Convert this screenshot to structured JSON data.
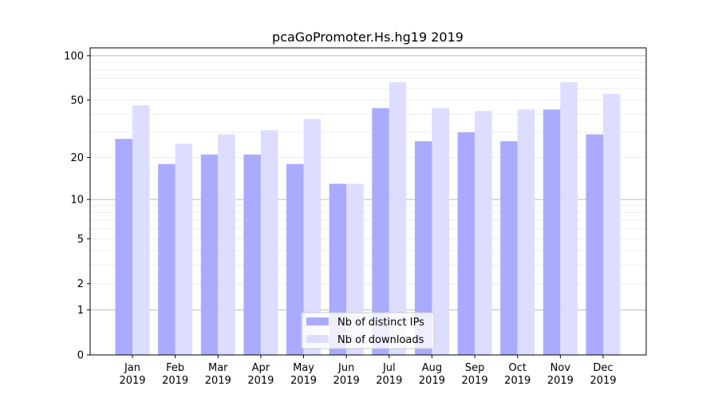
{
  "chart_data": {
    "type": "bar",
    "title": "pcaGoPromoter.Hs.hg19 2019",
    "xlabel": "",
    "ylabel": "",
    "yscale": "log(1+y)",
    "ylim": [
      0,
      113
    ],
    "yticks": [
      0,
      1,
      2,
      5,
      10,
      20,
      50,
      100
    ],
    "grid": true,
    "legend_position": "bottom-center",
    "categories": [
      [
        "Jan",
        "2019"
      ],
      [
        "Feb",
        "2019"
      ],
      [
        "Mar",
        "2019"
      ],
      [
        "Apr",
        "2019"
      ],
      [
        "May",
        "2019"
      ],
      [
        "Jun",
        "2019"
      ],
      [
        "Jul",
        "2019"
      ],
      [
        "Aug",
        "2019"
      ],
      [
        "Sep",
        "2019"
      ],
      [
        "Oct",
        "2019"
      ],
      [
        "Nov",
        "2019"
      ],
      [
        "Dec",
        "2019"
      ]
    ],
    "series": [
      {
        "name": "Nb of distinct IPs",
        "color": "#aaaaff",
        "values": [
          27,
          18,
          21,
          21,
          18,
          13,
          44,
          26,
          30,
          26,
          43,
          29
        ]
      },
      {
        "name": "Nb of downloads",
        "color": "#ddddff",
        "values": [
          46,
          25,
          29,
          31,
          37,
          13,
          66,
          44,
          42,
          43,
          66,
          55
        ]
      }
    ]
  }
}
